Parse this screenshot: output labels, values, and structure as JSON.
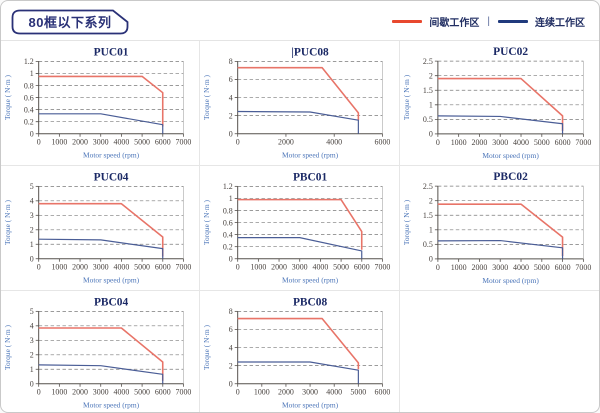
{
  "header": {
    "badge": "80框以下系列"
  },
  "legend": {
    "intermittent": "间歇工作区",
    "separator": "|",
    "continuous": "连续工作区"
  },
  "theme": {
    "red_line": "#e87468",
    "blue_line": "#4a5d96",
    "legend_red": "#e8482e",
    "legend_blue": "#203a7d",
    "grid": "#7a7a7a",
    "axis": "#55504c",
    "plot_border": "#b3b3b3",
    "badge_navy": "#2a3177"
  },
  "chart_data": [
    {
      "type": "line",
      "title": "PUC01",
      "xlabel": "Motor speed (rpm)",
      "ylabel": "Torque ( N·m )",
      "xlim": [
        0,
        7000
      ],
      "ylim": [
        0,
        1.2
      ],
      "xticks": [
        0,
        1000,
        2000,
        3000,
        4000,
        5000,
        6000,
        7000
      ],
      "yticks": [
        0,
        0.2,
        0.4,
        0.6,
        0.8,
        1,
        1.2
      ],
      "grid": "dashed-horizontal",
      "legend_position": "none",
      "series": [
        {
          "name": "间歇工作区",
          "color": "red",
          "points": [
            [
              0,
              0.95
            ],
            [
              5000,
              0.95
            ],
            [
              6000,
              0.68
            ],
            [
              6000,
              0.12
            ]
          ]
        },
        {
          "name": "连续工作区",
          "color": "blue",
          "points": [
            [
              0,
              0.33
            ],
            [
              3000,
              0.33
            ],
            [
              6000,
              0.15
            ],
            [
              6000,
              0
            ]
          ]
        }
      ]
    },
    {
      "type": "line",
      "title": "PUC08",
      "title_prefix": "|",
      "xlabel": "Motor speed (rpm)",
      "ylabel": "Torque ( N·m )",
      "xlim": [
        0,
        6000
      ],
      "ylim": [
        0,
        8
      ],
      "xticks": [
        0,
        2000,
        4000,
        6000
      ],
      "yticks": [
        0,
        2,
        4,
        6,
        8
      ],
      "grid": "dashed-horizontal",
      "legend_position": "none",
      "series": [
        {
          "name": "间歇工作区",
          "color": "red",
          "points": [
            [
              0,
              7.3
            ],
            [
              3500,
              7.3
            ],
            [
              5000,
              2.3
            ],
            [
              5000,
              1.5
            ]
          ]
        },
        {
          "name": "连续工作区",
          "color": "blue",
          "points": [
            [
              0,
              2.45
            ],
            [
              3000,
              2.4
            ],
            [
              5000,
              1.5
            ],
            [
              5000,
              0
            ]
          ]
        }
      ]
    },
    {
      "type": "line",
      "title": "PUC02",
      "xlabel": "Motor speed (rpm)",
      "ylabel": "Torque ( N·m )",
      "xlim": [
        0,
        7000
      ],
      "ylim": [
        0,
        2.5
      ],
      "xticks": [
        0,
        1000,
        2000,
        3000,
        4000,
        5000,
        6000,
        7000
      ],
      "yticks": [
        0,
        0.5,
        1,
        1.5,
        2,
        2.5
      ],
      "grid": "dashed-horizontal",
      "legend_position": "none",
      "series": [
        {
          "name": "间歇工作区",
          "color": "red",
          "points": [
            [
              0,
              1.9
            ],
            [
              4000,
              1.9
            ],
            [
              6000,
              0.62
            ],
            [
              6000,
              0.1
            ]
          ]
        },
        {
          "name": "连续工作区",
          "color": "blue",
          "points": [
            [
              0,
              0.62
            ],
            [
              3000,
              0.6
            ],
            [
              6000,
              0.35
            ],
            [
              6000,
              0
            ]
          ]
        }
      ]
    },
    {
      "type": "line",
      "title": "PUC04",
      "xlabel": "Motor speed (rpm)",
      "ylabel": "Torque ( N·m )",
      "xlim": [
        0,
        7000
      ],
      "ylim": [
        0,
        5
      ],
      "xticks": [
        0,
        1000,
        2000,
        3000,
        4000,
        5000,
        6000,
        7000
      ],
      "yticks": [
        0,
        1,
        2,
        3,
        4,
        5
      ],
      "grid": "dashed-horizontal",
      "legend_position": "none",
      "series": [
        {
          "name": "间歇工作区",
          "color": "red",
          "points": [
            [
              0,
              3.8
            ],
            [
              4000,
              3.8
            ],
            [
              6000,
              1.5
            ],
            [
              6000,
              0.15
            ]
          ]
        },
        {
          "name": "连续工作区",
          "color": "blue",
          "points": [
            [
              0,
              1.35
            ],
            [
              3000,
              1.3
            ],
            [
              6000,
              0.7
            ],
            [
              6000,
              0
            ]
          ]
        }
      ]
    },
    {
      "type": "line",
      "title": "PBC01",
      "xlabel": "Motor speed (rpm)",
      "ylabel": "Torque ( N·m )",
      "xlim": [
        0,
        7000
      ],
      "ylim": [
        0,
        1.2
      ],
      "xticks": [
        0,
        1000,
        2000,
        3000,
        4000,
        5000,
        6000,
        7000
      ],
      "yticks": [
        0,
        0.2,
        0.4,
        0.6,
        0.8,
        1,
        1.2
      ],
      "grid": "dashed-horizontal",
      "legend_position": "none",
      "series": [
        {
          "name": "间歇工作区",
          "color": "red",
          "points": [
            [
              0,
              0.98
            ],
            [
              5000,
              0.98
            ],
            [
              6000,
              0.45
            ],
            [
              6000,
              0.15
            ]
          ]
        },
        {
          "name": "连续工作区",
          "color": "blue",
          "points": [
            [
              0,
              0.35
            ],
            [
              3000,
              0.35
            ],
            [
              6000,
              0.13
            ],
            [
              6000,
              0
            ]
          ]
        }
      ]
    },
    {
      "type": "line",
      "title": "PBC02",
      "xlabel": "Motor speed (rpm)",
      "ylabel": "Torque ( N·m )",
      "xlim": [
        0,
        7000
      ],
      "ylim": [
        0,
        2.5
      ],
      "xticks": [
        0,
        1000,
        2000,
        3000,
        4000,
        5000,
        6000,
        7000
      ],
      "yticks": [
        0,
        0.5,
        1,
        1.5,
        2,
        2.5
      ],
      "grid": "dashed-horizontal",
      "legend_position": "none",
      "series": [
        {
          "name": "间歇工作区",
          "color": "red",
          "points": [
            [
              0,
              1.88
            ],
            [
              4000,
              1.88
            ],
            [
              6000,
              0.75
            ],
            [
              6000,
              0.1
            ]
          ]
        },
        {
          "name": "连续工作区",
          "color": "blue",
          "points": [
            [
              0,
              0.62
            ],
            [
              3000,
              0.63
            ],
            [
              6000,
              0.38
            ],
            [
              6000,
              0
            ]
          ]
        }
      ]
    },
    {
      "type": "line",
      "title": "PBC04",
      "xlabel": "Motor speed (rpm)",
      "ylabel": "Torque ( N·m )",
      "xlim": [
        0,
        7000
      ],
      "ylim": [
        0,
        5
      ],
      "xticks": [
        0,
        1000,
        2000,
        3000,
        4000,
        5000,
        6000,
        7000
      ],
      "yticks": [
        0,
        1,
        2,
        3,
        4,
        5
      ],
      "grid": "dashed-horizontal",
      "legend_position": "none",
      "series": [
        {
          "name": "间歇工作区",
          "color": "red",
          "points": [
            [
              0,
              3.85
            ],
            [
              4000,
              3.85
            ],
            [
              6000,
              1.5
            ],
            [
              6000,
              0.2
            ]
          ]
        },
        {
          "name": "连续工作区",
          "color": "blue",
          "points": [
            [
              0,
              1.3
            ],
            [
              3000,
              1.25
            ],
            [
              6000,
              0.65
            ],
            [
              6000,
              0
            ]
          ]
        }
      ]
    },
    {
      "type": "line",
      "title": "PBC08",
      "xlabel": "Motor speed (rpm)",
      "ylabel": "Torque ( N·m )",
      "xlim": [
        0,
        6000
      ],
      "ylim": [
        0,
        8
      ],
      "xticks": [
        0,
        1000,
        2000,
        3000,
        4000,
        5000,
        6000
      ],
      "yticks": [
        0,
        2,
        4,
        6,
        8
      ],
      "grid": "dashed-horizontal",
      "legend_position": "none",
      "series": [
        {
          "name": "间歇工作区",
          "color": "red",
          "points": [
            [
              0,
              7.2
            ],
            [
              3500,
              7.2
            ],
            [
              5000,
              2.3
            ],
            [
              5000,
              1.6
            ]
          ]
        },
        {
          "name": "连续工作区",
          "color": "blue",
          "points": [
            [
              0,
              2.4
            ],
            [
              3000,
              2.4
            ],
            [
              5000,
              1.5
            ],
            [
              5000,
              0
            ]
          ]
        }
      ]
    }
  ]
}
